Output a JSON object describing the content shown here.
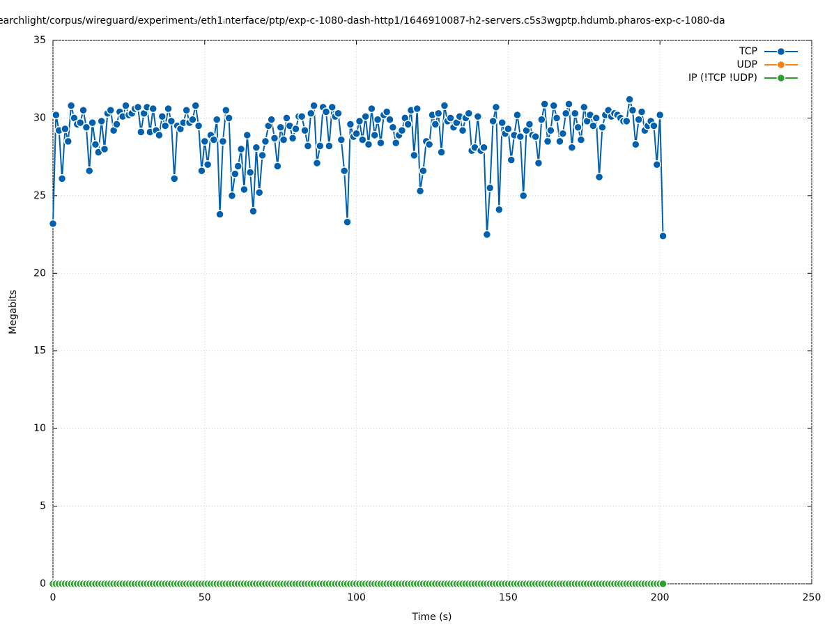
{
  "chart_data": {
    "type": "line",
    "title": "earchlight/corpus/wireguard/experiment₃/eth1ᵢnterface/ptp/exp-c-1080-dash-http1/1646910087-h2-servers.c5s3wgptp.hdumb.pharos-exp-c-1080-da",
    "xlabel": "Time (s)",
    "ylabel": "Megabits",
    "xlim": [
      0,
      250
    ],
    "ylim": [
      0,
      35
    ],
    "xticks": [
      0,
      50,
      100,
      150,
      200,
      250
    ],
    "yticks": [
      0,
      5,
      10,
      15,
      20,
      25,
      30,
      35
    ],
    "grid": true,
    "legend": "top-right",
    "x": [
      0,
      1,
      2,
      3,
      4,
      5,
      6,
      7,
      8,
      9,
      10,
      11,
      12,
      13,
      14,
      15,
      16,
      17,
      18,
      19,
      20,
      21,
      22,
      23,
      24,
      25,
      26,
      27,
      28,
      29,
      30,
      31,
      32,
      33,
      34,
      35,
      36,
      37,
      38,
      39,
      40,
      41,
      42,
      43,
      44,
      45,
      46,
      47,
      48,
      49,
      50,
      51,
      52,
      53,
      54,
      55,
      56,
      57,
      58,
      59,
      60,
      61,
      62,
      63,
      64,
      65,
      66,
      67,
      68,
      69,
      70,
      71,
      72,
      73,
      74,
      75,
      76,
      77,
      78,
      79,
      80,
      81,
      82,
      83,
      84,
      85,
      86,
      87,
      88,
      89,
      90,
      91,
      92,
      93,
      94,
      95,
      96,
      97,
      98,
      99,
      100,
      101,
      102,
      103,
      104,
      105,
      106,
      107,
      108,
      109,
      110,
      111,
      112,
      113,
      114,
      115,
      116,
      117,
      118,
      119,
      120,
      121,
      122,
      123,
      124,
      125,
      126,
      127,
      128,
      129,
      130,
      131,
      132,
      133,
      134,
      135,
      136,
      137,
      138,
      139,
      140,
      141,
      142,
      143,
      144,
      145,
      146,
      147,
      148,
      149,
      150,
      151,
      152,
      153,
      154,
      155,
      156,
      157,
      158,
      159,
      160,
      161,
      162,
      163,
      164,
      165,
      166,
      167,
      168,
      169,
      170,
      171,
      172,
      173,
      174,
      175,
      176,
      177,
      178,
      179,
      180,
      181,
      182,
      183,
      184,
      185,
      186,
      187,
      188,
      189,
      190,
      191,
      192,
      193,
      194,
      195,
      196,
      197,
      198,
      199,
      200,
      201
    ],
    "series": [
      {
        "name": "TCP",
        "color": "#0060ad",
        "values": [
          23.2,
          30.2,
          29.2,
          26.1,
          29.3,
          28.5,
          30.8,
          30.0,
          29.6,
          29.7,
          30.5,
          29.4,
          26.6,
          29.7,
          28.3,
          27.8,
          29.8,
          28.0,
          30.3,
          30.5,
          29.2,
          29.6,
          30.4,
          30.1,
          30.8,
          30.2,
          30.3,
          30.6,
          30.7,
          29.1,
          30.3,
          30.7,
          29.1,
          30.6,
          29.2,
          28.9,
          30.1,
          29.5,
          30.6,
          29.8,
          26.1,
          29.5,
          29.3,
          29.7,
          30.5,
          29.7,
          29.9,
          30.8,
          29.5,
          26.6,
          28.5,
          27.0,
          28.9,
          28.6,
          29.9,
          23.8,
          28.5,
          30.5,
          30.0,
          25.0,
          26.4,
          26.9,
          28.0,
          25.4,
          28.9,
          26.5,
          24.0,
          28.1,
          25.2,
          27.6,
          28.5,
          29.5,
          29.9,
          28.7,
          26.9,
          29.4,
          28.6,
          30.0,
          29.5,
          28.7,
          29.3,
          30.1,
          30.1,
          29.2,
          28.2,
          30.3,
          30.8,
          27.1,
          28.2,
          30.7,
          30.4,
          28.2,
          30.7,
          30.1,
          30.3,
          28.6,
          26.6,
          23.3,
          29.6,
          28.8,
          29.0,
          29.8,
          28.6,
          30.1,
          28.3,
          30.6,
          28.9,
          29.9,
          28.4,
          30.2,
          30.4,
          29.9,
          29.4,
          28.4,
          28.9,
          29.2,
          30.0,
          29.6,
          30.5,
          27.6,
          30.6,
          25.3,
          26.6,
          28.5,
          28.3,
          30.2,
          29.6,
          30.3,
          27.8,
          30.8,
          29.8,
          30.0,
          29.4,
          29.7,
          30.1,
          29.2,
          30.0,
          30.3,
          27.9,
          28.1,
          30.1,
          27.9,
          28.1,
          22.5,
          25.5,
          29.8,
          30.7,
          24.1,
          29.7,
          29.0,
          29.3,
          27.3,
          28.9,
          30.2,
          28.8,
          25.0,
          29.2,
          29.6,
          28.9,
          28.8,
          27.1,
          29.9,
          30.9,
          28.5,
          29.2,
          30.8,
          30.0,
          28.5,
          29.0,
          30.3,
          30.9,
          28.1,
          30.3,
          29.4,
          28.6,
          30.7,
          29.8,
          30.2,
          29.5,
          30.0,
          26.2,
          29.4,
          30.2,
          30.5,
          30.1,
          30.3,
          30.2,
          30.0,
          29.8,
          29.8,
          31.2,
          30.5,
          28.3,
          29.9,
          30.4,
          29.2,
          29.5,
          29.8,
          29.5,
          27.0,
          30.2,
          22.4
        ]
      },
      {
        "name": "UDP",
        "color": "#ff7f0e",
        "values": [
          0,
          0,
          0,
          0,
          0,
          0,
          0,
          0,
          0,
          0,
          0,
          0,
          0,
          0,
          0,
          0,
          0,
          0,
          0,
          0,
          0,
          0,
          0,
          0,
          0,
          0,
          0,
          0,
          0,
          0,
          0,
          0,
          0,
          0,
          0,
          0,
          0,
          0,
          0,
          0,
          0,
          0,
          0,
          0,
          0,
          0,
          0,
          0,
          0,
          0,
          0,
          0,
          0,
          0,
          0,
          0,
          0,
          0,
          0,
          0,
          0,
          0,
          0,
          0,
          0,
          0,
          0,
          0,
          0,
          0,
          0,
          0,
          0,
          0,
          0,
          0,
          0,
          0,
          0,
          0,
          0,
          0,
          0,
          0,
          0,
          0,
          0,
          0,
          0,
          0,
          0,
          0,
          0,
          0,
          0,
          0,
          0,
          0,
          0,
          0,
          0,
          0,
          0,
          0,
          0,
          0,
          0,
          0,
          0,
          0,
          0,
          0,
          0,
          0,
          0,
          0,
          0,
          0,
          0,
          0,
          0,
          0,
          0,
          0,
          0,
          0,
          0,
          0,
          0,
          0,
          0,
          0,
          0,
          0,
          0,
          0,
          0,
          0,
          0,
          0,
          0,
          0,
          0,
          0,
          0,
          0,
          0,
          0,
          0,
          0,
          0,
          0,
          0,
          0,
          0,
          0,
          0,
          0,
          0,
          0,
          0,
          0,
          0,
          0,
          0,
          0,
          0,
          0,
          0,
          0,
          0,
          0,
          0,
          0,
          0,
          0,
          0,
          0,
          0,
          0,
          0,
          0,
          0,
          0,
          0,
          0,
          0,
          0,
          0,
          0,
          0,
          0,
          0,
          0,
          0,
          0,
          0,
          0,
          0,
          0,
          0,
          0
        ]
      },
      {
        "name": "IP (!TCP  !UDP)",
        "color": "#2ca02c",
        "values": [
          0,
          0,
          0,
          0,
          0,
          0,
          0,
          0,
          0,
          0,
          0,
          0,
          0,
          0,
          0,
          0,
          0,
          0,
          0,
          0,
          0,
          0,
          0,
          0,
          0,
          0,
          0,
          0,
          0,
          0,
          0,
          0,
          0,
          0,
          0,
          0,
          0,
          0,
          0,
          0,
          0,
          0,
          0,
          0,
          0,
          0,
          0,
          0,
          0,
          0,
          0,
          0,
          0,
          0,
          0,
          0,
          0,
          0,
          0,
          0,
          0,
          0,
          0,
          0,
          0,
          0,
          0,
          0,
          0,
          0,
          0,
          0,
          0,
          0,
          0,
          0,
          0,
          0,
          0,
          0,
          0,
          0,
          0,
          0,
          0,
          0,
          0,
          0,
          0,
          0,
          0,
          0,
          0,
          0,
          0,
          0,
          0,
          0,
          0,
          0,
          0,
          0,
          0,
          0,
          0,
          0,
          0,
          0,
          0,
          0,
          0,
          0,
          0,
          0,
          0,
          0,
          0,
          0,
          0,
          0,
          0,
          0,
          0,
          0,
          0,
          0,
          0,
          0,
          0,
          0,
          0,
          0,
          0,
          0,
          0,
          0,
          0,
          0,
          0,
          0,
          0,
          0,
          0,
          0,
          0,
          0,
          0,
          0,
          0,
          0,
          0,
          0,
          0,
          0,
          0,
          0,
          0,
          0,
          0,
          0,
          0,
          0,
          0,
          0,
          0,
          0,
          0,
          0,
          0,
          0,
          0,
          0,
          0,
          0,
          0,
          0,
          0,
          0,
          0,
          0,
          0,
          0,
          0,
          0,
          0,
          0,
          0,
          0,
          0,
          0,
          0,
          0,
          0,
          0,
          0,
          0,
          0,
          0,
          0,
          0,
          0,
          0
        ]
      }
    ]
  }
}
